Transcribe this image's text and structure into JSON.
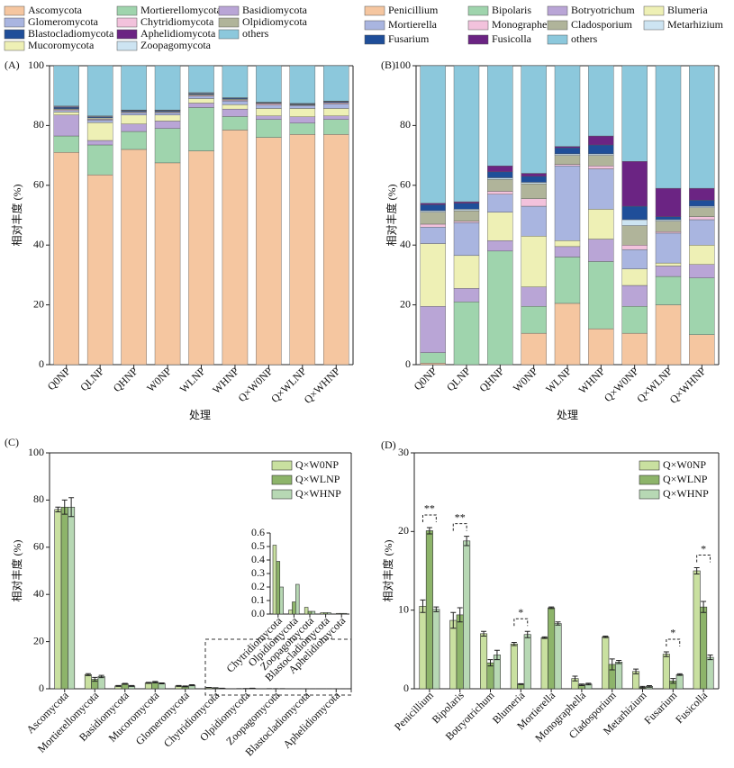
{
  "chart_data": [
    {
      "type": "stacked_bar",
      "title": "(A)",
      "x_label": "处理",
      "y_label": "相对丰度 (%)",
      "categories": [
        "Q0NP",
        "QLNP",
        "QHNP",
        "W0NP",
        "WLNP",
        "WHNP",
        "Q×W0NP",
        "Q×WLNP",
        "Q×WHNP"
      ],
      "ylim": [
        0,
        100
      ],
      "yticks": [
        0,
        20,
        40,
        60,
        80,
        100
      ],
      "legend": "above",
      "series": [
        {
          "name": "Ascomycota",
          "color": "#f5c6a0",
          "values": [
            71,
            63.5,
            72,
            67.5,
            71.5,
            78.5,
            76,
            77,
            77
          ]
        },
        {
          "name": "Mortierellomycota",
          "color": "#9fd4ad",
          "values": [
            5.5,
            10,
            6,
            11.5,
            14.5,
            4.5,
            6,
            3.8,
            5
          ]
        },
        {
          "name": "Basidiomycota",
          "color": "#b9a5d6",
          "values": [
            7,
            1.5,
            2.5,
            2.5,
            1.5,
            2.5,
            1.2,
            2.1,
            1.2
          ]
        },
        {
          "name": "Mucoromycota",
          "color": "#eef0b5",
          "values": [
            1,
            6,
            3,
            2,
            1.5,
            1.5,
            2.5,
            2.8,
            2.5
          ]
        },
        {
          "name": "Glomeromycota",
          "color": "#a9b5e0",
          "values": [
            0.5,
            0.8,
            0.8,
            0.8,
            0.8,
            1.2,
            1.1,
            1,
            1.5
          ]
        },
        {
          "name": "Chytridiomycota",
          "color": "#f2c2dc",
          "values": [
            0.3,
            0.3,
            0.2,
            0.2,
            0.3,
            0.3,
            0.5,
            0.1,
            0.4
          ]
        },
        {
          "name": "Olpidiomycota",
          "color": "#b0b49a",
          "values": [
            0.3,
            0.5,
            0.2,
            0.2,
            0.3,
            0.3,
            0.1,
            0.2,
            0.1
          ]
        },
        {
          "name": "Blastocladiomycota",
          "color": "#1f4e99",
          "values": [
            0.5,
            0.3,
            0.3,
            0.3,
            0.3,
            0.3,
            0.2,
            0.2,
            0.3
          ]
        },
        {
          "name": "Aphelidiomycota",
          "color": "#6b2483",
          "values": [
            0.2,
            0.1,
            0.1,
            0.1,
            0.1,
            0.1,
            0.1,
            0.1,
            0.1
          ]
        },
        {
          "name": "Zoopagomycota",
          "color": "#cde4f2",
          "values": [
            0.2,
            0.2,
            0.1,
            0.1,
            0.2,
            0.1,
            0.1,
            0.1,
            0.1
          ]
        },
        {
          "name": "others",
          "color": "#8cc8dc",
          "values": [
            13.5,
            16.8,
            14.8,
            14.8,
            9,
            10.7,
            12.2,
            12.6,
            11.8
          ]
        }
      ]
    },
    {
      "type": "stacked_bar",
      "title": "(B)",
      "x_label": "处理",
      "y_label": "相对丰度 (%)",
      "categories": [
        "Q0NP",
        "QLNP",
        "QHNP",
        "W0NP",
        "WLNP",
        "WHNP",
        "Q×W0NP",
        "Q×WLNP",
        "Q×WHNP"
      ],
      "ylim": [
        0,
        100
      ],
      "yticks": [
        0,
        20,
        40,
        60,
        80,
        100
      ],
      "legend": "above",
      "series": [
        {
          "name": "Penicillium",
          "color": "#f5c6a0",
          "values": [
            0.5,
            0,
            0,
            10.5,
            20.5,
            12,
            10.5,
            20,
            10
          ]
        },
        {
          "name": "Bipolaris",
          "color": "#9fd4ad",
          "values": [
            3.5,
            21,
            38,
            9,
            15.5,
            22.5,
            9,
            9.5,
            19
          ]
        },
        {
          "name": "Botryotrichum",
          "color": "#b9a5d6",
          "values": [
            15.5,
            4.5,
            3.5,
            6.5,
            3.5,
            7.5,
            7,
            3.5,
            4.5
          ]
        },
        {
          "name": "Blumeria",
          "color": "#eef0b5",
          "values": [
            21,
            11,
            9.5,
            17,
            2,
            10,
            5.5,
            1,
            6.5
          ]
        },
        {
          "name": "Mortierella",
          "color": "#a9b5e0",
          "values": [
            5.5,
            11,
            6,
            10,
            25,
            13.5,
            6.5,
            10,
            8.5
          ]
        },
        {
          "name": "Monographella",
          "color": "#f2c2dc",
          "values": [
            1,
            0.5,
            1,
            2.5,
            0.5,
            1,
            1.5,
            0.5,
            1
          ]
        },
        {
          "name": "Cladosporium",
          "color": "#b0b49a",
          "values": [
            4,
            3.5,
            4,
            5,
            3,
            3.5,
            6.5,
            3.5,
            3
          ]
        },
        {
          "name": "Metarhizium",
          "color": "#cde4f2",
          "values": [
            0.5,
            0.5,
            0.5,
            0.5,
            0.5,
            0.5,
            2,
            0.5,
            0.5
          ]
        },
        {
          "name": "Fusarium",
          "color": "#1f4e99",
          "values": [
            2,
            2,
            2,
            2,
            2,
            3,
            4.5,
            1,
            2
          ]
        },
        {
          "name": "Fusicolla",
          "color": "#6b2483",
          "values": [
            0.5,
            0.5,
            2,
            1,
            0.5,
            3,
            15,
            9.5,
            4
          ]
        },
        {
          "name": "others",
          "color": "#8cc8dc",
          "values": [
            46,
            45.5,
            33.5,
            36,
            27,
            23.5,
            32,
            41,
            41
          ]
        }
      ]
    },
    {
      "type": "grouped_bar",
      "title": "(C)",
      "y_label": "相对丰度 (%)",
      "categories": [
        "Ascomycota",
        "Mortierellomycota",
        "Basidiomycota",
        "Mucoromycota",
        "Glomeromycota",
        "Chytridiomycota",
        "Olpidiomycota",
        "Zoopagomycota",
        "Blastocladiomycota",
        "Aphelidiomycota"
      ],
      "ylim": [
        0,
        100
      ],
      "yticks": [
        0,
        20,
        40,
        60,
        80,
        100
      ],
      "legend": "upper right",
      "series": [
        {
          "name": "Q×W0NP",
          "color": "#c9e0a0",
          "values": [
            76,
            6,
            1.2,
            2.5,
            1.2,
            0.51,
            0.03,
            0.05,
            0.01,
            0.005
          ],
          "errors": [
            1,
            0.4,
            0.2,
            0.2,
            0.2,
            0.05,
            0.01,
            0.01,
            0.005,
            0.002
          ]
        },
        {
          "name": "Q×WLNP",
          "color": "#8db46a",
          "values": [
            77,
            4,
            2.1,
            2.8,
            1,
            0.39,
            0.09,
            0.02,
            0.01,
            0.005
          ],
          "errors": [
            3,
            0.8,
            0.2,
            0.3,
            0.2,
            0.05,
            0.01,
            0.01,
            0.005,
            0.002
          ]
        },
        {
          "name": "Q×WHNP",
          "color": "#b7d8b4",
          "values": [
            77,
            5.2,
            1.2,
            2.3,
            1.5,
            0.2,
            0.22,
            0.02,
            0.01,
            0.005
          ],
          "errors": [
            4,
            0.5,
            0.2,
            0.2,
            0.2,
            0.05,
            0.01,
            0.01,
            0.005,
            0.002
          ]
        }
      ]
    },
    {
      "type": "grouped_bar",
      "categories": [
        "Chytridiomycota",
        "Olpidiomycota",
        "Zoopagomycota",
        "Blastocladiomycota",
        "Aphelidiomycota"
      ],
      "ylim": [
        0,
        0.6
      ],
      "yticks": [
        {
          "value": 0,
          "label": "0.0"
        },
        0.1,
        0.2,
        0.3,
        0.4,
        0.5,
        0.6
      ],
      "series": [
        {
          "color": "#c9e0a0",
          "values": [
            0.51,
            0.03,
            0.05,
            0.01,
            0.005
          ]
        },
        {
          "color": "#8db46a",
          "values": [
            0.39,
            0.09,
            0.02,
            0.01,
            0.005
          ]
        },
        {
          "color": "#b7d8b4",
          "values": [
            0.2,
            0.22,
            0.02,
            0.01,
            0.005
          ]
        }
      ]
    },
    {
      "type": "grouped_bar",
      "title": "(D)",
      "y_label": "相对丰度 (%)",
      "categories": [
        "Penicillium",
        "Bipolaris",
        "Botryotrichum",
        "Blumeria",
        "Mortierella",
        "Monographella",
        "Cladosporium",
        "Metarhizium",
        "Fusarium",
        "Fusicolla"
      ],
      "ylim": [
        0,
        30
      ],
      "yticks": [
        0,
        10,
        20,
        30
      ],
      "legend": "upper right",
      "significance": [
        "**",
        "**",
        null,
        "*",
        null,
        null,
        null,
        null,
        "*",
        "*"
      ],
      "series": [
        {
          "name": "Q×W0NP",
          "color": "#c9e0a0",
          "values": [
            10.5,
            8.7,
            7,
            5.7,
            6.5,
            1.3,
            6.6,
            2.2,
            4.4,
            15
          ],
          "errors": [
            0.8,
            1,
            0.3,
            0.2,
            0.1,
            0.3,
            0.1,
            0.3,
            0.3,
            0.4
          ]
        },
        {
          "name": "Q×WLNP",
          "color": "#8db46a",
          "values": [
            20.1,
            9.4,
            3.3,
            0.6,
            10.3,
            0.5,
            3.1,
            0.2,
            1,
            10.4
          ],
          "errors": [
            0.4,
            0.9,
            0.4,
            0.05,
            0.1,
            0.1,
            0.7,
            0.1,
            0.3,
            0.7
          ]
        },
        {
          "name": "Q×WHNP",
          "color": "#b7d8b4",
          "values": [
            10.1,
            18.8,
            4.3,
            6.9,
            8.3,
            0.6,
            3.4,
            0.3,
            1.8,
            4
          ],
          "errors": [
            0.3,
            0.6,
            0.6,
            0.4,
            0.2,
            0.1,
            0.2,
            0.1,
            0.1,
            0.3
          ]
        }
      ]
    }
  ]
}
